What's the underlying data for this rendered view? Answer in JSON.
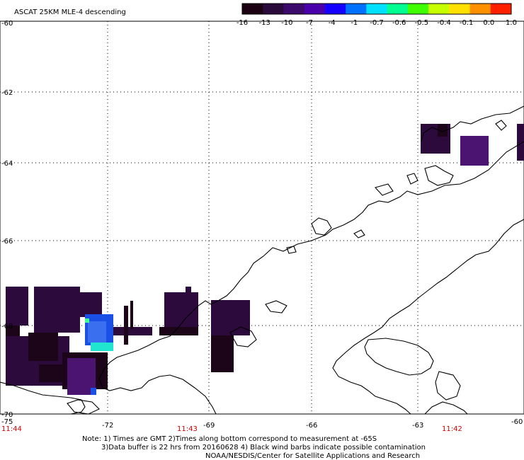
{
  "title": "ASCAT 25KM MLE-4 descending",
  "colorbar": {
    "labels": [
      "-16",
      "-13",
      "-10",
      "-7",
      "-4",
      "-1",
      "-0.7",
      "-0.6",
      "-0.5",
      "-0.4",
      "-0.1",
      "0.0",
      "1.0"
    ],
    "colors": [
      "#1a0010",
      "#2a0a3a",
      "#3c0a6a",
      "#4a00aa",
      "#1400ff",
      "#0070ff",
      "#00e0ff",
      "#00ff90",
      "#40ff00",
      "#c8ff00",
      "#ffe000",
      "#ff9000",
      "#ff2000"
    ]
  },
  "lat_labels": [
    "-60",
    "-62",
    "-64",
    "-66",
    "-68",
    "-70"
  ],
  "lon_labels": [
    "-75",
    "-72",
    "-69",
    "-66",
    "-63",
    "-60"
  ],
  "time_labels": [
    "11:44",
    "11:43",
    "11:42"
  ],
  "notes": [
    "Note: 1) Times are GMT 2)Times along bottom correspond to measurement at -65S",
    "3)Data buffer is 22 hrs from 20160628 4) Black wind barbs indicate possible contamination",
    "NOAA/NESDIS/Center for Satellite Applications and Research"
  ],
  "colors": {
    "dark_purple": "#2d0a3c",
    "very_dark": "#1c0518",
    "purple": "#4a1470",
    "blue": "#1a50e6",
    "cyan": "#20e6d0",
    "coast": "#000000",
    "time_red": "#cc0000"
  }
}
